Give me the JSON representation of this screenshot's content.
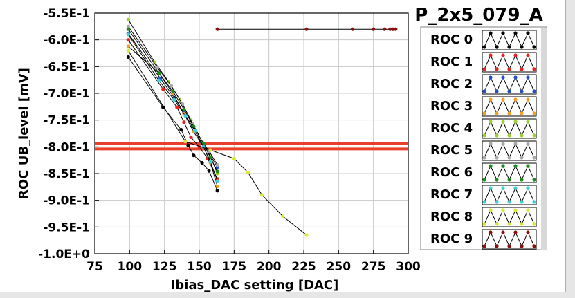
{
  "chart_data": {
    "type": "scatter",
    "xlabel": "Ibias_DAC setting [DAC]",
    "ylabel": "ROC UB_level [mV]",
    "xlim": [
      75,
      300
    ],
    "ylim": [
      -1.0,
      -0.55
    ],
    "x_ticks": [
      "75",
      "100",
      "125",
      "150",
      "175",
      "200",
      "225",
      "250",
      "275",
      "300"
    ],
    "y_ticks": [
      "-5.5E-1",
      "-6.0E-1",
      "-6.5E-1",
      "-7.0E-1",
      "-7.5E-1",
      "-8.0E-1",
      "-8.5E-1",
      "-9.0E-1",
      "-9.5E-1",
      "-1.0E+0"
    ],
    "grid": true,
    "legend_title": "P_2x5_079_A",
    "legend_position": "right",
    "threshold_lines": [
      {
        "y": -0.794,
        "color": "#e8402a"
      },
      {
        "y": -0.804,
        "color": "#e8402a"
      }
    ],
    "series": [
      {
        "name": "ROC 0",
        "color": "#000000",
        "x": [
          99,
          124,
          137,
          142,
          146,
          152,
          157,
          163
        ],
        "y": [
          -0.632,
          -0.726,
          -0.768,
          -0.797,
          -0.816,
          -0.83,
          -0.845,
          -0.882
        ]
      },
      {
        "name": "ROC 1",
        "color": "#e8201e",
        "x": [
          99,
          124,
          134,
          139,
          144,
          150,
          156,
          163
        ],
        "y": [
          -0.6,
          -0.692,
          -0.726,
          -0.754,
          -0.782,
          -0.8,
          -0.822,
          -0.86
        ]
      },
      {
        "name": "ROC 2",
        "color": "#1f4fc8",
        "x": [
          99,
          122,
          132,
          139,
          145,
          151,
          157,
          163
        ],
        "y": [
          -0.588,
          -0.672,
          -0.708,
          -0.736,
          -0.762,
          -0.79,
          -0.812,
          -0.838
        ]
      },
      {
        "name": "ROC 3",
        "color": "#f0a020",
        "x": [
          99,
          121,
          131,
          139,
          146,
          153,
          158,
          163
        ],
        "y": [
          -0.612,
          -0.662,
          -0.7,
          -0.738,
          -0.772,
          -0.8,
          -0.83,
          -0.874
        ]
      },
      {
        "name": "ROC 4",
        "color": "#9ad032",
        "x": [
          99,
          118,
          128,
          136,
          144,
          152,
          158,
          163
        ],
        "y": [
          -0.562,
          -0.642,
          -0.678,
          -0.712,
          -0.75,
          -0.79,
          -0.818,
          -0.85
        ]
      },
      {
        "name": "ROC 5",
        "color": "#a8a8a8",
        "x": [
          99,
          120,
          130,
          138,
          145,
          152,
          157,
          163
        ],
        "y": [
          -0.575,
          -0.652,
          -0.686,
          -0.72,
          -0.756,
          -0.79,
          -0.808,
          -0.834
        ]
      },
      {
        "name": "ROC 6",
        "color": "#1a8a1a",
        "x": [
          99,
          121,
          131,
          139,
          146,
          153,
          158,
          163
        ],
        "y": [
          -0.58,
          -0.662,
          -0.696,
          -0.73,
          -0.762,
          -0.794,
          -0.82,
          -0.846
        ]
      },
      {
        "name": "ROC 7",
        "color": "#40d0d8",
        "x": [
          99,
          121,
          132,
          140,
          147,
          153,
          158,
          163
        ],
        "y": [
          -0.59,
          -0.676,
          -0.712,
          -0.742,
          -0.77,
          -0.8,
          -0.828,
          -0.864
        ]
      },
      {
        "name": "ROC 8",
        "color": "#d8e838",
        "x": [
          99,
          140,
          158,
          175,
          185,
          195,
          210,
          227
        ],
        "y": [
          -0.62,
          -0.79,
          -0.806,
          -0.822,
          -0.848,
          -0.89,
          -0.93,
          -0.965
        ]
      },
      {
        "name": "ROC 9",
        "color": "#8a1010",
        "x": [
          163,
          227,
          260,
          275,
          283,
          287,
          289,
          291
        ],
        "y": [
          -0.58,
          -0.58,
          -0.58,
          -0.58,
          -0.58,
          -0.58,
          -0.58,
          -0.58
        ]
      }
    ]
  }
}
